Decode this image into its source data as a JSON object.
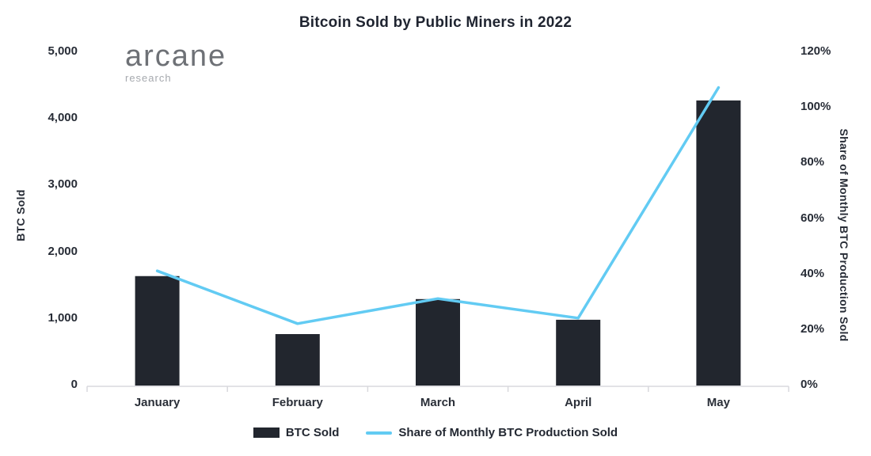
{
  "title": "Bitcoin Sold by Public Miners in 2022",
  "logo": {
    "name": "arcane",
    "sub": "research"
  },
  "chart_data": {
    "type": "bar",
    "subtype": "combo-bar-line-dual-axis",
    "title": "Bitcoin Sold by Public Miners in 2022",
    "categories": [
      "January",
      "February",
      "March",
      "April",
      "May"
    ],
    "series": [
      {
        "name": "BTC Sold",
        "type": "bar",
        "axis": "left",
        "values": [
          1630,
          760,
          1285,
          975,
          4265
        ],
        "color": "#22262e"
      },
      {
        "name": "Share of Monthly BTC Production Sold",
        "type": "line",
        "axis": "right",
        "values": [
          41,
          22,
          31,
          24,
          107
        ],
        "unit": "%",
        "color": "#62cbf3"
      }
    ],
    "left_axis": {
      "label": "BTC Sold",
      "min": 0,
      "max": 5000,
      "ticks": [
        "5,000",
        "4,000",
        "3,000",
        "2,000",
        "1,000",
        "0"
      ]
    },
    "right_axis": {
      "label": "Share of Monthly BTC Production Sold",
      "min": 0,
      "max": 120,
      "ticks": [
        "120%",
        "100%",
        "80%",
        "60%",
        "40%",
        "20%",
        "0%"
      ]
    },
    "grid": "off",
    "legend_position": "bottom-center",
    "colors": {
      "bar": "#22262e",
      "line": "#62cbf3",
      "axis_line": "#d9d9dd",
      "text": "#272c36"
    }
  }
}
